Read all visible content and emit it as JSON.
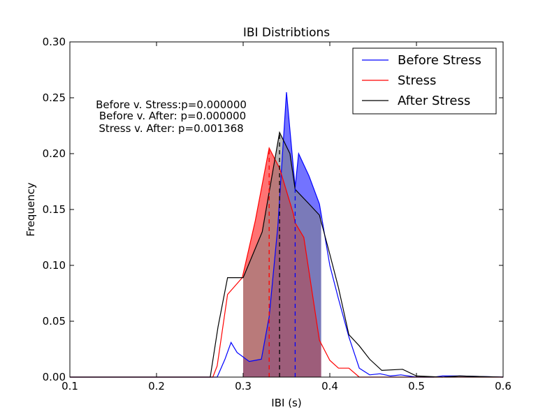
{
  "chart_data": {
    "type": "line",
    "title": "IBI Distribtions",
    "xlabel": "IBI (s)",
    "ylabel": "Frequency",
    "xlim": [
      0.1,
      0.6
    ],
    "ylim": [
      0.0,
      0.3
    ],
    "xticks": [
      0.1,
      0.2,
      0.3,
      0.4,
      0.5,
      0.6
    ],
    "xtick_labels": [
      "0.1",
      "0.2",
      "0.3",
      "0.4",
      "0.5",
      "0.6"
    ],
    "yticks": [
      0.0,
      0.05,
      0.1,
      0.15,
      0.2,
      0.25,
      0.3
    ],
    "ytick_labels": [
      "0.00",
      "0.05",
      "0.10",
      "0.15",
      "0.20",
      "0.25",
      "0.30"
    ],
    "grid": false,
    "legend_position": "top-right",
    "annotations": [
      "Before v. Stress:p=0.000000",
      "Before v. After: p=0.000000",
      "Stress v. After: p=0.001368"
    ],
    "series": [
      {
        "name": "Before Stress",
        "color": "#0000ff",
        "fill_color": "#0000ff",
        "fill_range": [
          0.3,
          0.39
        ],
        "mean": 0.36,
        "x": [
          0.1,
          0.27,
          0.279,
          0.286,
          0.293,
          0.307,
          0.314,
          0.321,
          0.33,
          0.34,
          0.35,
          0.36,
          0.364,
          0.37,
          0.376,
          0.388,
          0.4,
          0.41,
          0.422,
          0.434,
          0.446,
          0.458,
          0.47,
          0.482,
          0.5,
          0.52,
          0.53,
          0.55,
          0.6
        ],
        "y": [
          0.0,
          0.0,
          0.016,
          0.031,
          0.022,
          0.014,
          0.015,
          0.016,
          0.054,
          0.135,
          0.255,
          0.17,
          0.2,
          0.19,
          0.18,
          0.155,
          0.1,
          0.07,
          0.036,
          0.008,
          0.002,
          0.003,
          0.001,
          0.002,
          0.0,
          0.0,
          0.001,
          0.001,
          0.0
        ]
      },
      {
        "name": "Stress",
        "color": "#ff0000",
        "fill_color": "#ff0000",
        "fill_range": [
          0.3,
          0.39
        ],
        "mean": 0.33,
        "x": [
          0.1,
          0.265,
          0.27,
          0.282,
          0.299,
          0.314,
          0.33,
          0.342,
          0.358,
          0.36,
          0.37,
          0.388,
          0.4,
          0.41,
          0.422,
          0.434,
          0.446,
          0.6
        ],
        "y": [
          0.0,
          0.0,
          0.01,
          0.074,
          0.089,
          0.14,
          0.205,
          0.187,
          0.146,
          0.138,
          0.125,
          0.033,
          0.015,
          0.008,
          0.008,
          0.0,
          0.0,
          0.0
        ]
      },
      {
        "name": "After Stress",
        "color": "#000000",
        "fill_color": "#808080",
        "fill_range": [
          0.3,
          0.39
        ],
        "mean": 0.342,
        "x": [
          0.1,
          0.262,
          0.271,
          0.282,
          0.294,
          0.3,
          0.322,
          0.342,
          0.354,
          0.36,
          0.376,
          0.388,
          0.4,
          0.41,
          0.422,
          0.434,
          0.446,
          0.46,
          0.484,
          0.5,
          0.53,
          0.55,
          0.6
        ],
        "y": [
          0.0,
          0.0,
          0.045,
          0.089,
          0.089,
          0.089,
          0.13,
          0.219,
          0.2,
          0.168,
          0.155,
          0.145,
          0.11,
          0.08,
          0.038,
          0.028,
          0.016,
          0.006,
          0.007,
          0.001,
          0.0,
          0.001,
          0.0
        ]
      }
    ]
  }
}
